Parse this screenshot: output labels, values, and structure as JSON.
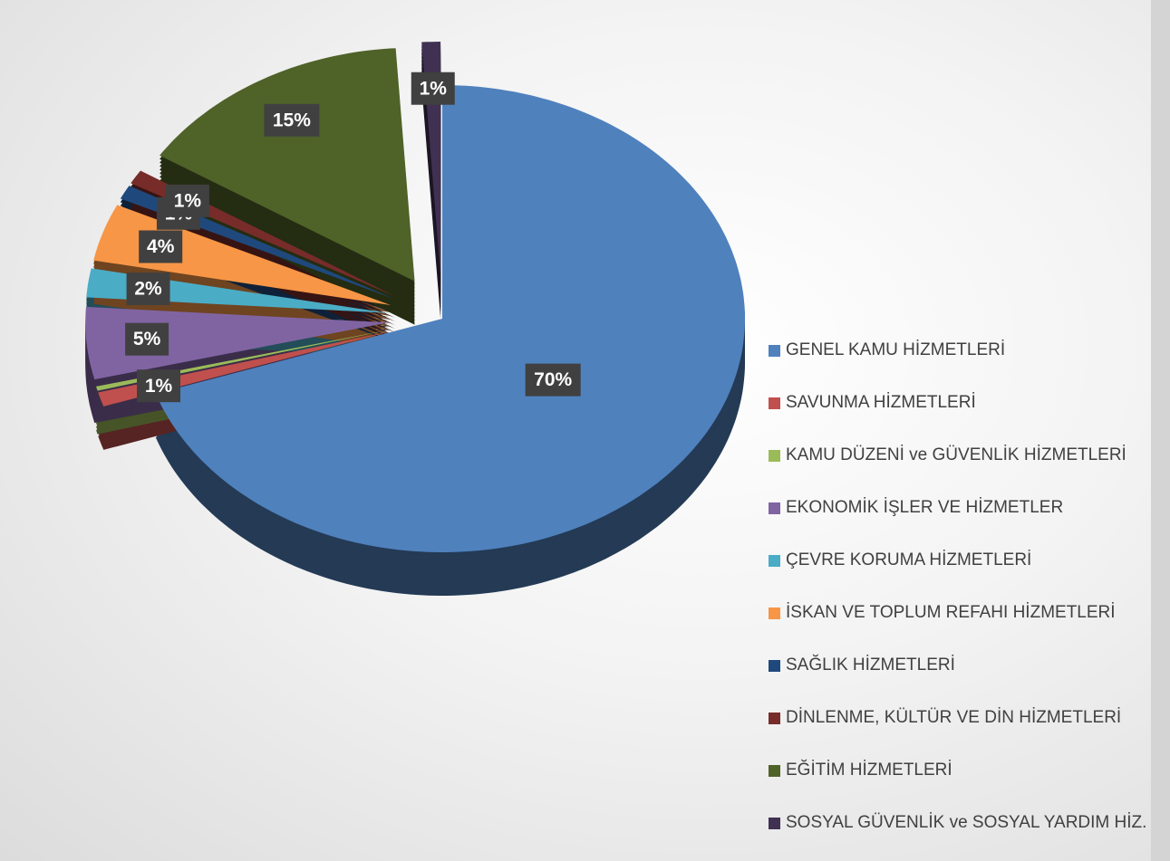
{
  "chart_data": {
    "type": "pie3d",
    "categories": [
      "GENEL KAMU HİZMETLERİ",
      "SAVUNMA HİZMETLERİ",
      "KAMU DÜZENİ ve GÜVENLİK HİZMETLERİ",
      "EKONOMİK İŞLER VE HİZMETLER",
      "ÇEVRE KORUMA HİZMETLERİ",
      "İSKAN VE TOPLUM REFAHI HİZMETLERİ",
      "SAĞLIK HİZMETLERİ",
      "DİNLENME, KÜLTÜR VE DİN HİZMETLERİ",
      "EĞİTİM HİZMETLERİ",
      "SOSYAL GÜVENLİK ve SOSYAL YARDIM HİZ."
    ],
    "values": [
      70,
      1,
      0.3,
      5,
      2,
      4,
      1,
      1,
      15,
      1
    ],
    "value_labels": [
      "70%",
      "1%",
      null,
      "5%",
      "2%",
      "4%",
      "1%",
      "1%",
      "15%",
      "1%"
    ],
    "colors": [
      "#4f81bd",
      "#c0504d",
      "#9bbb59",
      "#8064a2",
      "#4bacc6",
      "#f79646",
      "#1f497d",
      "#772c2a",
      "#4f6228",
      "#403152"
    ],
    "legend": "right"
  }
}
